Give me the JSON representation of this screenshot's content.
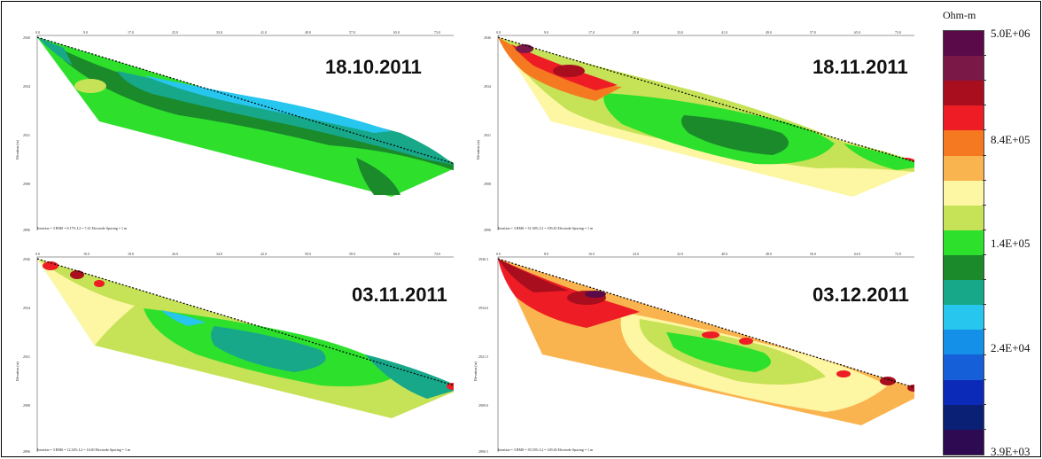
{
  "panels": [
    {
      "date": "18.10.2011",
      "y_ticks": [
        "2940",
        "2934",
        "2921",
        "2908",
        "2896"
      ],
      "x_ticks": [
        "0.0",
        "9.0",
        "17.0",
        "25.0",
        "33.0",
        "41.0",
        "49.0",
        "57.0",
        "65.0",
        "73.0"
      ],
      "y_label": "Elevation (m)",
      "stats": "Iteration = 3    RMS = 8.17%    L2 = 7.41    Electrode Spacing = 1 m"
    },
    {
      "date": "18.11.2011",
      "y_ticks": [
        "2946",
        "2934",
        "2921",
        "2908",
        "2896"
      ],
      "x_ticks": [
        "0.0",
        "9.0",
        "17.0",
        "25.0",
        "33.0",
        "41.0",
        "49.0",
        "57.0",
        "65.0",
        "73.0"
      ],
      "y_label": "Elevation (m)",
      "stats": "Iteration = 3    RMS = 31.36%    L2 = 109.45    Electrode Spacing = 1 m"
    },
    {
      "date": "03.11.2011",
      "y_ticks": [
        "2946",
        "2934",
        "2921",
        "2908",
        "2896"
      ],
      "x_ticks": [
        "0.0",
        "10.0",
        "18.0",
        "26.0",
        "34.0",
        "42.0",
        "50.0",
        "58.0",
        "66.0",
        "74.0"
      ],
      "y_label": "Elevation (m)",
      "stats": "Iteration = 3    RMS = 12.32%    L2 = 14.60    Electrode Spacing = 1 m"
    },
    {
      "date": "03.12.2011",
      "y_ticks": [
        "2946.3",
        "2934.0",
        "2921.5",
        "2909.0",
        "2896.5"
      ],
      "x_ticks": [
        "0.0",
        "8.0",
        "16.0",
        "24.0",
        "32.0",
        "40.0",
        "48.0",
        "56.0",
        "64.0",
        "72.0"
      ],
      "y_label": "Elevation (m)",
      "stats": "Iteration = 3    RMS = 35.53%    L2 = 149.26    Electrode Spacing = 1 m"
    }
  ],
  "legend": {
    "unit": "Ohm-m",
    "labels": [
      "5.0E+06",
      "8.4E+05",
      "1.4E+05",
      "2.4E+04",
      "3.9E+03"
    ],
    "colors": [
      "#5a0a48",
      "#7a1848",
      "#a80e1e",
      "#ee1c24",
      "#f47920",
      "#f9b450",
      "#fdf6a2",
      "#c6e256",
      "#2ce02c",
      "#1a8a2a",
      "#17a88a",
      "#26c6ef",
      "#1590e8",
      "#1560d8",
      "#0c2ab8",
      "#0a2074",
      "#2e0a52"
    ]
  }
}
